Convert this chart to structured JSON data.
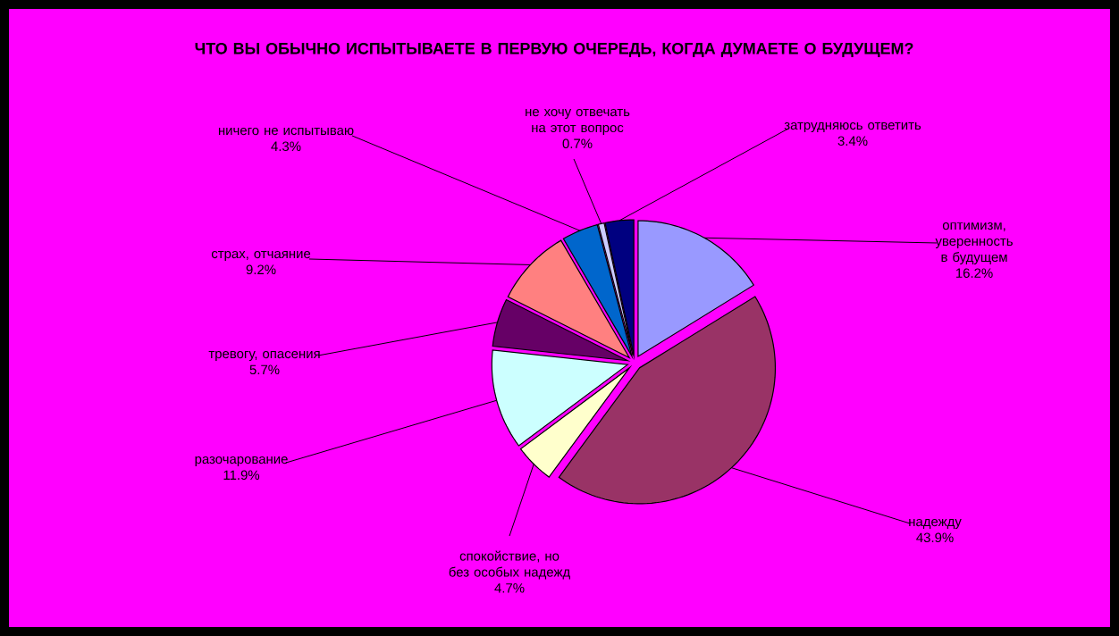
{
  "chart_data": {
    "type": "pie",
    "title": "ЧТО ВЫ ОБЫЧНО ИСПЫТЫВАЕТЕ В ПЕРВУЮ ОЧЕРЕДЬ, КОГДА ДУМАЕТЕ О БУДУЩЕМ?",
    "categories": [
      "оптимизм, уверенность в будущем",
      "надежду",
      "спокойствие, но без особых надежд",
      "разочарование",
      "тревогу, опасения",
      "страх, отчаяние",
      "ничего не испытываю",
      "не хочу отвечать на этот вопрос",
      "затрудняюсь ответить"
    ],
    "values": [
      16.2,
      43.9,
      4.7,
      11.9,
      5.7,
      9.2,
      4.3,
      0.7,
      3.4
    ],
    "value_labels": [
      "16.2%",
      "43.9%",
      "4.7%",
      "11.9%",
      "5.7%",
      "9.2%",
      "4.3%",
      "0.7%",
      "3.4%"
    ],
    "colors": [
      "#9999ff",
      "#993366",
      "#ffffcc",
      "#ccffff",
      "#660066",
      "#ff8080",
      "#0066cc",
      "#ccccff",
      "#000080"
    ]
  }
}
